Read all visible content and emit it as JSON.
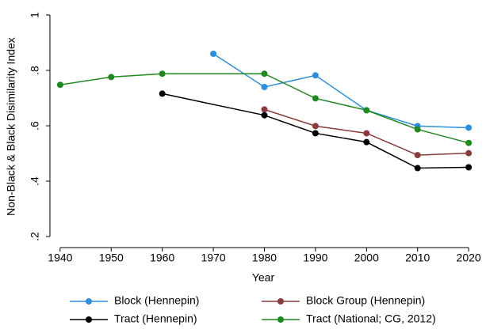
{
  "chart_data": {
    "type": "line",
    "x_label": "Year",
    "y_label": "Non-Black & Black Disimilarity Index",
    "xlim": [
      1938,
      2022
    ],
    "xticks": [
      1940,
      1950,
      1960,
      1970,
      1980,
      1990,
      2000,
      2010,
      2020
    ],
    "ylim": [
      0.16,
      1.0
    ],
    "yticks": [
      {
        "value": 0.2,
        "label": ".2"
      },
      {
        "value": 0.4,
        "label": ".4"
      },
      {
        "value": 0.6,
        "label": ".6"
      },
      {
        "value": 0.8,
        "label": ".8"
      },
      1
    ],
    "series": [
      {
        "name": "Block (Hennepin)",
        "color": "#2b8fe0",
        "x": [
          1970,
          1980,
          1990,
          2000,
          2010,
          2020
        ],
        "values": [
          0.86,
          0.74,
          0.782,
          0.656,
          0.599,
          0.593
        ]
      },
      {
        "name": "Block Group (Hennepin)",
        "color": "#8c3b3b",
        "x": [
          1980,
          1990,
          2000,
          2010,
          2020
        ],
        "values": [
          0.659,
          0.599,
          0.573,
          0.494,
          0.501
        ]
      },
      {
        "name": "Tract (Hennepin)",
        "color": "#000000",
        "x": [
          1960,
          1980,
          1990,
          2000,
          2010,
          2020
        ],
        "values": [
          0.716,
          0.638,
          0.573,
          0.541,
          0.447,
          0.45
        ]
      },
      {
        "name": "Tract (National; CG, 2012)",
        "color": "#1d8a1d",
        "x": [
          1940,
          1950,
          1960,
          1980,
          1990,
          2000,
          2010,
          2020
        ],
        "values": [
          0.748,
          0.776,
          0.788,
          0.788,
          0.699,
          0.656,
          0.587,
          0.538
        ]
      }
    ]
  }
}
